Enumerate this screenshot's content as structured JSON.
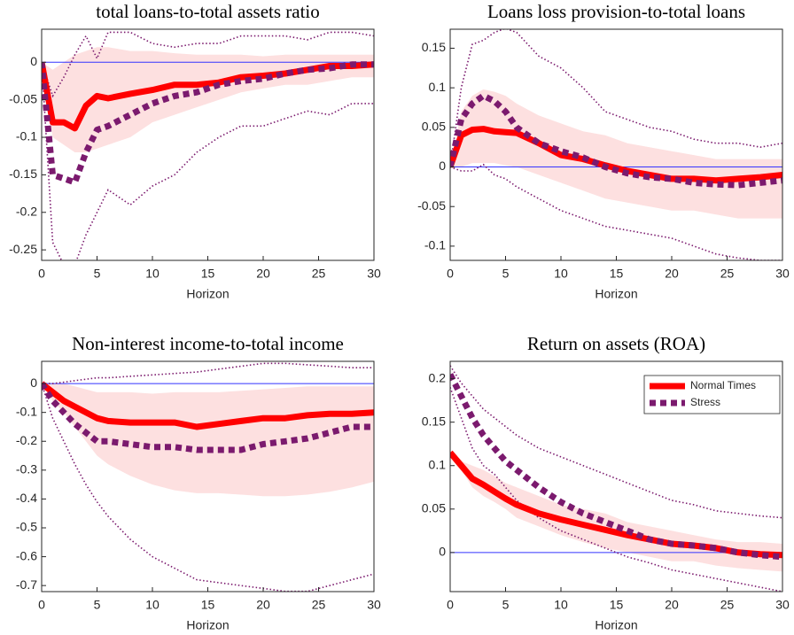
{
  "chart_data": [
    {
      "type": "line",
      "title": "total loans-to-total assets ratio",
      "xlabel": "Horizon",
      "x": [
        0,
        1,
        2,
        3,
        4,
        5,
        6,
        8,
        10,
        12,
        14,
        16,
        18,
        20,
        22,
        24,
        26,
        28,
        30
      ],
      "xlim": [
        0,
        30
      ],
      "xticks": [
        0,
        5,
        10,
        15,
        20,
        25,
        30
      ],
      "ylim": [
        -0.264,
        0.044
      ],
      "yticks": [
        -0.25,
        -0.2,
        -0.15,
        -0.1,
        -0.05,
        0
      ],
      "reference_line": 0,
      "reference_color": "#3333ff",
      "series": [
        {
          "color": "#ff0000",
          "style": "solid",
          "values": [
            0,
            -0.08,
            -0.08,
            -0.088,
            -0.058,
            -0.045,
            -0.048,
            -0.042,
            -0.037,
            -0.03,
            -0.03,
            -0.027,
            -0.02,
            -0.018,
            -0.015,
            -0.01,
            -0.005,
            -0.005,
            -0.003
          ]
        },
        {
          "color": "#7b1a6e",
          "style": "dotted",
          "values": [
            0,
            -0.15,
            -0.155,
            -0.16,
            -0.12,
            -0.09,
            -0.085,
            -0.07,
            -0.055,
            -0.045,
            -0.04,
            -0.03,
            -0.025,
            -0.022,
            -0.015,
            -0.01,
            -0.008,
            -0.003,
            -0.003
          ]
        }
      ],
      "band": {
        "color": "#fde0e0",
        "upper": [
          0,
          -0.01,
          0,
          0.01,
          0.015,
          0.02,
          0.02,
          0.015,
          0.015,
          0.012,
          0.01,
          0.01,
          0.01,
          0.008,
          0.01,
          0.01,
          0.01,
          0.01,
          0.01
        ],
        "lower": [
          0,
          -0.1,
          -0.11,
          -0.12,
          -0.12,
          -0.115,
          -0.11,
          -0.1,
          -0.08,
          -0.07,
          -0.06,
          -0.05,
          -0.04,
          -0.035,
          -0.03,
          -0.03,
          -0.025,
          -0.02,
          -0.02
        ]
      },
      "bounds": {
        "color": "#7b1a6e",
        "upper": [
          0,
          -0.045,
          -0.02,
          0.01,
          0.035,
          0.005,
          0.04,
          0.04,
          0.025,
          0.02,
          0.025,
          0.025,
          0.035,
          0.035,
          0.035,
          0.03,
          0.04,
          0.04,
          0.035
        ],
        "lower": [
          0,
          -0.24,
          -0.27,
          -0.27,
          -0.23,
          -0.2,
          -0.17,
          -0.19,
          -0.165,
          -0.15,
          -0.12,
          -0.1,
          -0.085,
          -0.085,
          -0.075,
          -0.065,
          -0.07,
          -0.055,
          -0.055
        ]
      }
    },
    {
      "type": "line",
      "title": "Loans loss provision-to-total loans",
      "xlabel": "Horizon",
      "x": [
        0,
        1,
        2,
        3,
        4,
        5,
        6,
        8,
        10,
        12,
        14,
        16,
        18,
        20,
        22,
        24,
        26,
        28,
        30
      ],
      "xlim": [
        0,
        30
      ],
      "xticks": [
        0,
        5,
        10,
        15,
        20,
        25,
        30
      ],
      "ylim": [
        -0.118,
        0.174
      ],
      "yticks": [
        -0.1,
        -0.05,
        0,
        0.05,
        0.1,
        0.15
      ],
      "reference_line": 0,
      "reference_color": "#3333ff",
      "series": [
        {
          "color": "#ff0000",
          "style": "solid",
          "values": [
            0,
            0.04,
            0.047,
            0.048,
            0.045,
            0.044,
            0.043,
            0.03,
            0.015,
            0.01,
            0.002,
            -0.005,
            -0.01,
            -0.015,
            -0.015,
            -0.017,
            -0.015,
            -0.013,
            -0.01
          ]
        },
        {
          "color": "#7b1a6e",
          "style": "dotted",
          "values": [
            0,
            0.06,
            0.08,
            0.09,
            0.083,
            0.07,
            0.05,
            0.03,
            0.02,
            0.012,
            0,
            -0.008,
            -0.013,
            -0.015,
            -0.02,
            -0.022,
            -0.023,
            -0.02,
            -0.017
          ]
        }
      ],
      "band": {
        "color": "#fde0e0",
        "upper": [
          0,
          0.07,
          0.09,
          0.098,
          0.095,
          0.09,
          0.08,
          0.065,
          0.055,
          0.045,
          0.04,
          0.03,
          0.025,
          0.02,
          0.015,
          0.01,
          0.01,
          0.01,
          0.01
        ],
        "lower": [
          0,
          0,
          0.005,
          0.005,
          0.005,
          0.002,
          0,
          -0.01,
          -0.02,
          -0.03,
          -0.04,
          -0.045,
          -0.05,
          -0.055,
          -0.055,
          -0.06,
          -0.065,
          -0.065,
          -0.065
        ]
      },
      "bounds": {
        "color": "#7b1a6e",
        "upper": [
          0,
          0.1,
          0.155,
          0.16,
          0.17,
          0.175,
          0.17,
          0.14,
          0.125,
          0.1,
          0.07,
          0.06,
          0.05,
          0.045,
          0.035,
          0.03,
          0.03,
          0.025,
          0.03
        ],
        "lower": [
          0,
          -0.005,
          -0.005,
          0.003,
          -0.01,
          -0.015,
          -0.025,
          -0.04,
          -0.055,
          -0.065,
          -0.075,
          -0.08,
          -0.085,
          -0.09,
          -0.1,
          -0.11,
          -0.115,
          -0.118,
          -0.118
        ]
      }
    },
    {
      "type": "line",
      "title": "Non-interest income-to-total income",
      "xlabel": "Horizon",
      "x": [
        0,
        1,
        2,
        3,
        4,
        5,
        6,
        8,
        10,
        12,
        14,
        16,
        18,
        20,
        22,
        24,
        26,
        28,
        30
      ],
      "xlim": [
        0,
        30
      ],
      "xticks": [
        0,
        5,
        10,
        15,
        20,
        25,
        30
      ],
      "ylim": [
        -0.721,
        0.077
      ],
      "yticks": [
        -0.7,
        -0.6,
        -0.5,
        -0.4,
        -0.3,
        -0.2,
        -0.1,
        0
      ],
      "reference_line": 0,
      "reference_color": "#3333ff",
      "series": [
        {
          "color": "#ff0000",
          "style": "solid",
          "values": [
            0,
            -0.03,
            -0.06,
            -0.08,
            -0.1,
            -0.12,
            -0.13,
            -0.135,
            -0.135,
            -0.135,
            -0.15,
            -0.14,
            -0.13,
            -0.12,
            -0.12,
            -0.11,
            -0.105,
            -0.105,
            -0.1
          ]
        },
        {
          "color": "#7b1a6e",
          "style": "dotted",
          "values": [
            0,
            -0.06,
            -0.1,
            -0.14,
            -0.17,
            -0.2,
            -0.2,
            -0.21,
            -0.22,
            -0.22,
            -0.23,
            -0.23,
            -0.23,
            -0.21,
            -0.2,
            -0.19,
            -0.17,
            -0.15,
            -0.15
          ]
        }
      ],
      "band": {
        "color": "#fde0e0",
        "upper": [
          0,
          0,
          0,
          -0.01,
          -0.02,
          -0.03,
          -0.03,
          -0.03,
          -0.035,
          -0.03,
          -0.03,
          -0.03,
          -0.025,
          -0.02,
          -0.015,
          -0.01,
          -0.01,
          -0.01,
          -0.01
        ],
        "lower": [
          0,
          -0.06,
          -0.1,
          -0.15,
          -0.2,
          -0.25,
          -0.28,
          -0.32,
          -0.35,
          -0.37,
          -0.38,
          -0.38,
          -0.385,
          -0.39,
          -0.39,
          -0.385,
          -0.375,
          -0.36,
          -0.34
        ]
      },
      "bounds": {
        "color": "#7b1a6e",
        "upper": [
          0,
          0,
          0.005,
          0.01,
          0.015,
          0.02,
          0.02,
          0.025,
          0.03,
          0.035,
          0.04,
          0.05,
          0.06,
          0.07,
          0.07,
          0.065,
          0.06,
          0.055,
          0.055
        ],
        "lower": [
          0,
          -0.12,
          -0.2,
          -0.28,
          -0.35,
          -0.41,
          -0.46,
          -0.54,
          -0.6,
          -0.64,
          -0.68,
          -0.69,
          -0.7,
          -0.71,
          -0.72,
          -0.72,
          -0.7,
          -0.68,
          -0.66
        ]
      }
    },
    {
      "type": "line",
      "title": "Return on assets (ROA)",
      "xlabel": "Horizon",
      "x": [
        0,
        1,
        2,
        3,
        4,
        5,
        6,
        8,
        10,
        12,
        14,
        16,
        18,
        20,
        22,
        24,
        26,
        28,
        30
      ],
      "xlim": [
        0,
        30
      ],
      "xticks": [
        0,
        5,
        10,
        15,
        20,
        25,
        30
      ],
      "ylim": [
        -0.045,
        0.22
      ],
      "yticks": [
        0,
        0.05,
        0.1,
        0.15,
        0.2
      ],
      "reference_line": 0,
      "reference_color": "#3333ff",
      "legend": "upper right",
      "series": [
        {
          "name": "Normal Times",
          "color": "#ff0000",
          "style": "solid",
          "values": [
            0.115,
            0.1,
            0.085,
            0.078,
            0.07,
            0.062,
            0.055,
            0.045,
            0.038,
            0.032,
            0.026,
            0.02,
            0.015,
            0.01,
            0.008,
            0.005,
            0,
            -0.002,
            -0.003
          ]
        },
        {
          "name": "Stress",
          "color": "#7b1a6e",
          "style": "dotted",
          "values": [
            0.205,
            0.18,
            0.155,
            0.135,
            0.12,
            0.105,
            0.095,
            0.075,
            0.058,
            0.045,
            0.035,
            0.025,
            0.015,
            0.01,
            0.008,
            0.005,
            0,
            -0.003,
            -0.005
          ]
        }
      ],
      "band": {
        "color": "#fde0e0",
        "upper": [
          0.115,
          0.105,
          0.1,
          0.095,
          0.088,
          0.08,
          0.075,
          0.065,
          0.055,
          0.05,
          0.045,
          0.035,
          0.03,
          0.025,
          0.02,
          0.015,
          0.012,
          0.012,
          0.01
        ],
        "lower": [
          0.115,
          0.095,
          0.075,
          0.065,
          0.058,
          0.05,
          0.04,
          0.03,
          0.02,
          0.012,
          0.005,
          0,
          -0.005,
          -0.01,
          -0.01,
          -0.015,
          -0.018,
          -0.02,
          -0.022
        ]
      },
      "bounds": {
        "color": "#7b1a6e",
        "upper": [
          0.215,
          0.195,
          0.18,
          0.165,
          0.155,
          0.145,
          0.135,
          0.12,
          0.11,
          0.1,
          0.09,
          0.08,
          0.07,
          0.06,
          0.055,
          0.048,
          0.045,
          0.042,
          0.04
        ],
        "lower": [
          0.19,
          0.155,
          0.12,
          0.1,
          0.09,
          0.075,
          0.06,
          0.04,
          0.025,
          0.015,
          0.005,
          -0.005,
          -0.012,
          -0.02,
          -0.025,
          -0.03,
          -0.035,
          -0.04,
          -0.045
        ]
      }
    }
  ]
}
